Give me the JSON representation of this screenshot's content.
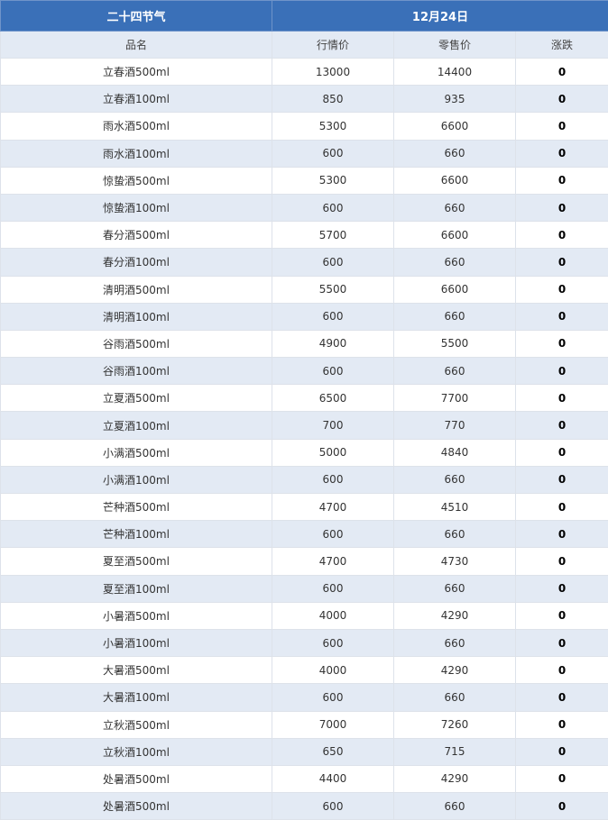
{
  "table": {
    "title": "二十四节气",
    "date": "12月24日",
    "columns": [
      "品名",
      "行情价",
      "零售价",
      "涨跌"
    ],
    "rows": [
      [
        "立春酒500ml",
        13000,
        14400,
        0
      ],
      [
        "立春酒100ml",
        850,
        935,
        0
      ],
      [
        "雨水酒500ml",
        5300,
        6600,
        0
      ],
      [
        "雨水酒100ml",
        600,
        660,
        0
      ],
      [
        "惊蛰酒500ml",
        5300,
        6600,
        0
      ],
      [
        "惊蛰酒100ml",
        600,
        660,
        0
      ],
      [
        "春分酒500ml",
        5700,
        6600,
        0
      ],
      [
        "春分酒100ml",
        600,
        660,
        0
      ],
      [
        "清明酒500ml",
        5500,
        6600,
        0
      ],
      [
        "清明酒100ml",
        600,
        660,
        0
      ],
      [
        "谷雨酒500ml",
        4900,
        5500,
        0
      ],
      [
        "谷雨酒100ml",
        600,
        660,
        0
      ],
      [
        "立夏酒500ml",
        6500,
        7700,
        0
      ],
      [
        "立夏酒100ml",
        700,
        770,
        0
      ],
      [
        "小满酒500ml",
        5000,
        4840,
        0
      ],
      [
        "小满酒100ml",
        600,
        660,
        0
      ],
      [
        "芒种酒500ml",
        4700,
        4510,
        0
      ],
      [
        "芒种酒100ml",
        600,
        660,
        0
      ],
      [
        "夏至酒500ml",
        4700,
        4730,
        0
      ],
      [
        "夏至酒100ml",
        600,
        660,
        0
      ],
      [
        "小暑酒500ml",
        4000,
        4290,
        0
      ],
      [
        "小暑酒100ml",
        600,
        660,
        0
      ],
      [
        "大暑酒500ml",
        4000,
        4290,
        0
      ],
      [
        "大暑酒100ml",
        600,
        660,
        0
      ],
      [
        "立秋酒500ml",
        7000,
        7260,
        0
      ],
      [
        "立秋酒100ml",
        650,
        715,
        0
      ],
      [
        "处暑酒500ml",
        4400,
        4290,
        0
      ],
      [
        "处暑酒500ml",
        600,
        660,
        0
      ]
    ]
  }
}
